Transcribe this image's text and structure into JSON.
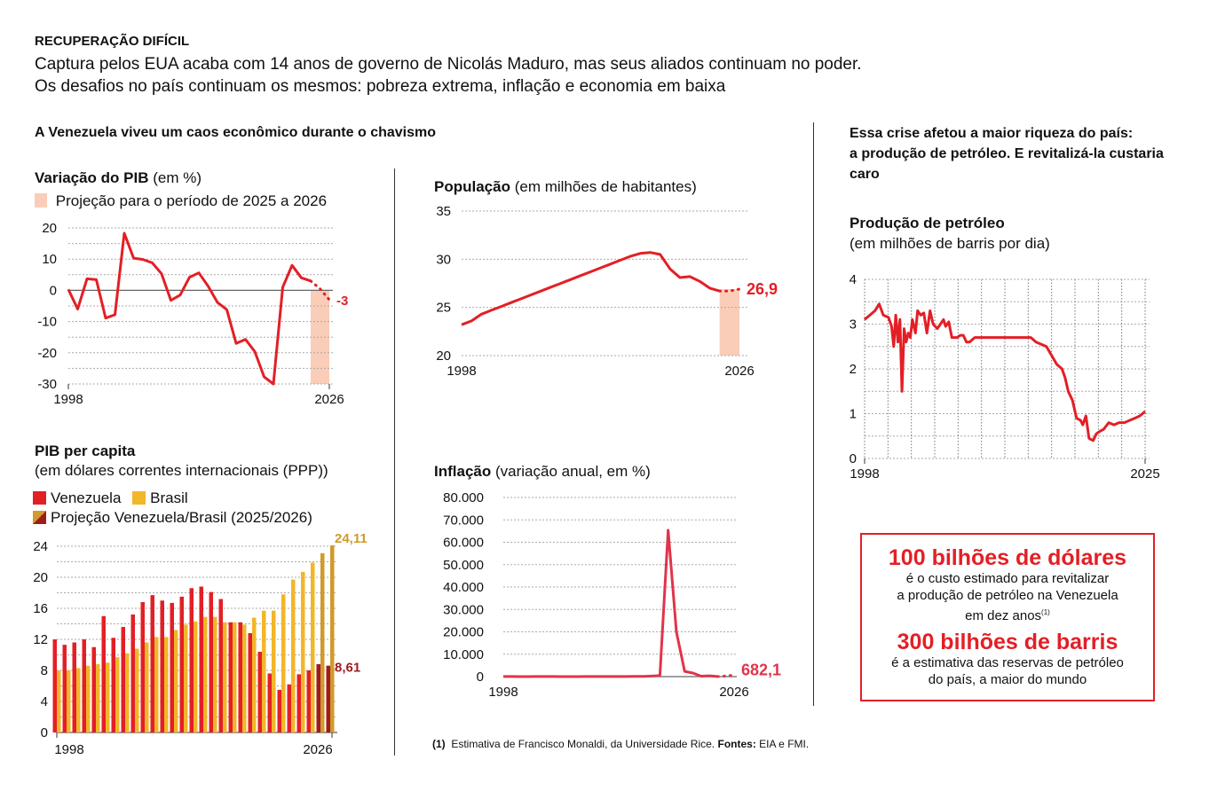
{
  "header": {
    "kicker": "RECUPERAÇÃO DIFÍCIL",
    "lede_line1": "Captura pelos EUA acaba com 14 anos de governo de Nicolás Maduro, mas seus aliados continuam no poder.",
    "lede_line2": "Os desafios no país continuam os mesmos: pobreza extrema, inflação e economia em baixa"
  },
  "left_section_title": "A Venezuela viveu um caos econômico durante o chavismo",
  "right_section_title": [
    "Essa crise afetou a maior riqueza do país:",
    "a produção de petróleo. E revitalizá-la custaria",
    "caro"
  ],
  "colors": {
    "red": "#e31f26",
    "projection_fill": "#f9cdb8",
    "brasil": "#f2b629",
    "ven_proj": "#9e1b1e",
    "bra_proj": "#d19a2a",
    "grid": "#999999"
  },
  "chart_data": [
    {
      "id": "pib_variacao",
      "type": "line",
      "title": "Variação do PIB",
      "title_unit": "(em %)",
      "legend": [
        {
          "label": "Projeção para o período de 2025 a 2026",
          "color": "#f9cdb8"
        }
      ],
      "x": [
        1998,
        1999,
        2000,
        2001,
        2002,
        2003,
        2004,
        2005,
        2006,
        2007,
        2008,
        2009,
        2010,
        2011,
        2012,
        2013,
        2014,
        2015,
        2016,
        2017,
        2018,
        2019,
        2020,
        2021,
        2022,
        2023,
        2024,
        2025,
        2026
      ],
      "values": [
        0.3,
        -6,
        3.7,
        3.4,
        -8.9,
        -7.8,
        18.3,
        10.3,
        9.9,
        8.8,
        5.3,
        -3.2,
        -1.5,
        4.2,
        5.6,
        1.3,
        -3.9,
        -6.2,
        -17,
        -15.7,
        -19.6,
        -27.7,
        -30,
        1,
        8,
        4,
        3,
        0.5,
        -3
      ],
      "projection_from": 2024,
      "end_label": "-3",
      "yticks": [
        20,
        10,
        0,
        -10,
        -20,
        -30
      ],
      "ylim": [
        -30,
        20
      ],
      "xtick_labels": [
        "1998",
        "2026"
      ],
      "xlabel": "",
      "ylabel": "",
      "grid": true
    },
    {
      "id": "populacao",
      "type": "line",
      "title": "População",
      "title_unit": "(em milhões de habitantes)",
      "x": [
        1998,
        1999,
        2000,
        2001,
        2002,
        2003,
        2004,
        2005,
        2006,
        2007,
        2008,
        2009,
        2010,
        2011,
        2012,
        2013,
        2014,
        2015,
        2016,
        2017,
        2018,
        2019,
        2020,
        2021,
        2022,
        2023,
        2024,
        2025,
        2026
      ],
      "values": [
        23.2,
        23.6,
        24.3,
        24.7,
        25.1,
        25.5,
        25.9,
        26.3,
        26.7,
        27.1,
        27.5,
        27.9,
        28.3,
        28.7,
        29.1,
        29.5,
        29.9,
        30.3,
        30.6,
        30.7,
        30.5,
        29,
        28.1,
        28.2,
        27.7,
        27,
        26.7,
        26.7,
        26.9
      ],
      "projection_from": 2024,
      "end_label": "26,9",
      "yticks": [
        35,
        30,
        25,
        20
      ],
      "ylim": [
        20,
        35
      ],
      "xtick_labels": [
        "1998",
        "2026"
      ],
      "grid": true
    },
    {
      "id": "inflacao",
      "type": "line",
      "title": "Inflação",
      "title_unit": "(variação anual, em %)",
      "x": [
        1998,
        1999,
        2000,
        2001,
        2002,
        2003,
        2004,
        2005,
        2006,
        2007,
        2008,
        2009,
        2010,
        2011,
        2012,
        2013,
        2014,
        2015,
        2016,
        2017,
        2018,
        2019,
        2020,
        2021,
        2022,
        2023,
        2024,
        2025,
        2026
      ],
      "values": [
        36,
        24,
        16,
        12,
        22,
        31,
        22,
        16,
        14,
        19,
        31,
        27,
        28,
        26,
        21,
        41,
        62,
        122,
        255,
        438,
        65374,
        19906,
        2355,
        1588,
        186,
        337,
        49,
        270,
        682.1
      ],
      "projection_from": 2024,
      "end_label": "682,1",
      "yticks": [
        "80.000",
        "70.000",
        "60.000",
        "50.000",
        "40.000",
        "30.000",
        "20.000",
        "10.000",
        "0"
      ],
      "ylim": [
        0,
        80000
      ],
      "xtick_labels": [
        "1998",
        "2026"
      ],
      "grid": true
    },
    {
      "id": "pib_per_capita",
      "type": "bar",
      "title": "PIB per capita",
      "subtitle": "(em dólares correntes internacionais (PPP))",
      "legend": [
        {
          "label": "Venezuela",
          "color": "#e31f26"
        },
        {
          "label": "Brasil",
          "color": "#f2b629"
        },
        {
          "label": "Projeção Venezuela/Brasil (2025/2026)",
          "color": "#9e1b1e"
        }
      ],
      "categories": [
        1998,
        1999,
        2000,
        2001,
        2002,
        2003,
        2004,
        2005,
        2006,
        2007,
        2008,
        2009,
        2010,
        2011,
        2012,
        2013,
        2014,
        2015,
        2016,
        2017,
        2018,
        2019,
        2020,
        2021,
        2022,
        2023,
        2024,
        2025,
        2026
      ],
      "series": [
        {
          "name": "Venezuela",
          "values": [
            12,
            11.3,
            11.6,
            12,
            11,
            15,
            12.2,
            13.6,
            15.2,
            16.8,
            17.7,
            17,
            16.7,
            17.5,
            18.6,
            18.8,
            18.1,
            17.2,
            14.2,
            14.2,
            12.8,
            10.4,
            7.6,
            5.5,
            6.2,
            7.5,
            8,
            8.8,
            8.61
          ]
        },
        {
          "name": "Brasil",
          "values": [
            8,
            8,
            8.3,
            8.6,
            8.8,
            9,
            9.7,
            10.2,
            10.8,
            11.6,
            12.3,
            12.3,
            13.2,
            13.9,
            14.3,
            14.9,
            14.9,
            14.2,
            14.2,
            13.9,
            14.8,
            15.7,
            15.7,
            17.8,
            19.7,
            20.7,
            21.9,
            23.1,
            24.11
          ]
        }
      ],
      "projection_from": 2025,
      "end_labels": {
        "brasil": "24,11",
        "venezuela": "8,61"
      },
      "yticks": [
        24,
        20,
        16,
        12,
        8,
        4,
        0
      ],
      "ylim": [
        0,
        24
      ],
      "xtick_labels": [
        "1998",
        "2026"
      ],
      "grid": true
    },
    {
      "id": "producao_petroleo",
      "type": "line",
      "title": "Produção de petróleo",
      "subtitle": "(em milhões de barris por dia)",
      "x": [
        1998,
        1998.5,
        1999,
        1999.4,
        1999.8,
        2000.3,
        2000.6,
        2000.8,
        2001,
        2001.2,
        2001.4,
        2001.6,
        2001.8,
        2002,
        2002.2,
        2002.4,
        2002.6,
        2002.9,
        2003.1,
        2003.4,
        2003.7,
        2004,
        2004.3,
        2004.6,
        2005,
        2005.3,
        2005.6,
        2005.8,
        2006.1,
        2006.4,
        2006.6,
        2006.9,
        2007.2,
        2007.5,
        2007.8,
        2008.1,
        2008.6,
        2009,
        2009.5,
        2010,
        2010.5,
        2011,
        2011.5,
        2012,
        2012.5,
        2013,
        2013.5,
        2014,
        2014.5,
        2015,
        2015.5,
        2016,
        2016.5,
        2017,
        2017.3,
        2017.6,
        2018,
        2018.4,
        2018.8,
        2019,
        2019.3,
        2019.6,
        2020,
        2020.3,
        2020.6,
        2021,
        2021.5,
        2022,
        2022.5,
        2023,
        2023.5,
        2024,
        2024.5,
        2025
      ],
      "values": [
        3.1,
        3.2,
        3.3,
        3.45,
        3.2,
        3.15,
        2.95,
        2.5,
        3.2,
        2.6,
        3.1,
        1.5,
        2.9,
        2.6,
        2.8,
        2.7,
        3.1,
        2.8,
        3.3,
        3.2,
        3.25,
        2.8,
        3.3,
        3.0,
        2.9,
        3.0,
        3.1,
        2.95,
        3.05,
        2.7,
        2.7,
        2.7,
        2.75,
        2.75,
        2.6,
        2.6,
        2.7,
        2.7,
        2.7,
        2.7,
        2.7,
        2.7,
        2.7,
        2.7,
        2.7,
        2.7,
        2.7,
        2.7,
        2.6,
        2.55,
        2.5,
        2.3,
        2.1,
        2.0,
        1.8,
        1.5,
        1.3,
        0.9,
        0.85,
        0.75,
        0.95,
        0.45,
        0.4,
        0.55,
        0.6,
        0.65,
        0.8,
        0.75,
        0.8,
        0.8,
        0.85,
        0.9,
        0.95,
        1.05
      ],
      "yticks": [
        4,
        3,
        2,
        1,
        0
      ],
      "ylim": [
        0,
        4
      ],
      "xlim": [
        1998,
        2025
      ],
      "xtick_labels": [
        "1998",
        "2025"
      ],
      "grid": true
    }
  ],
  "callout": {
    "big1": "100 bilhões de dólares",
    "text1_l1": "é o custo estimado para revitalizar",
    "text1_l2": "a produção de petróleo na Venezuela",
    "text1_l3": "em dez anos",
    "text1_sup": "(1)",
    "big2": "300 bilhões de barris",
    "text2_l1": "é a estimativa das reservas de petróleo",
    "text2_l2": "do país, a maior do mundo"
  },
  "footnote": {
    "marker": "(1)",
    "text": "Estimativa de Francisco Monaldi, da Universidade Rice.",
    "sources_label": "Fontes:",
    "sources": "EIA e FMI."
  }
}
